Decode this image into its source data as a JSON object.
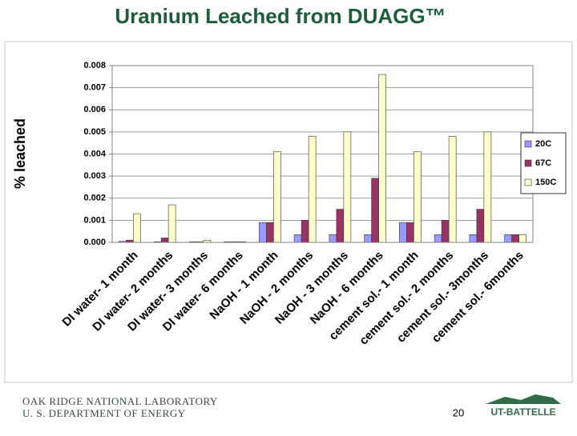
{
  "slide": {
    "title": "Uranium Leached from DUAGG™",
    "footer_line1": "OAK RIDGE NATIONAL LABORATORY",
    "footer_line2": "U. S. DEPARTMENT OF ENERGY",
    "page_number": "20",
    "logo_text": "UT-BATTELLE"
  },
  "chart_data": {
    "type": "bar",
    "y_label": "% leached",
    "categories": [
      "DI water- 1 month",
      "DI water- 2 months",
      "DI water- 3 months",
      "DI water- 6 months",
      "NaOH - 1 month",
      "NaOH - 2 months",
      "NaOH - 3 months",
      "NaOH - 6 months",
      "cement sol.- 1 month",
      "cement sol.- 2 months",
      "cement sol.- 3months",
      "cement sol.- 6months"
    ],
    "series": [
      {
        "name": "20C",
        "color": "#9999ff",
        "values": [
          5e-05,
          3e-05,
          3e-05,
          3e-05,
          0.0009,
          0.00035,
          0.00035,
          0.00035,
          0.0009,
          0.00035,
          0.00035,
          0.00035
        ]
      },
      {
        "name": "67C",
        "color": "#993366",
        "values": [
          0.0001,
          0.0002,
          3e-05,
          3e-05,
          0.0009,
          0.001,
          0.0015,
          0.0029,
          0.0009,
          0.001,
          0.0015,
          0.00035
        ]
      },
      {
        "name": "150C",
        "color": "#ffffcc",
        "values": [
          0.0013,
          0.0017,
          0.0001,
          3e-05,
          0.0041,
          0.0048,
          0.005,
          0.0076,
          0.0041,
          0.0048,
          0.005,
          0.00035
        ]
      }
    ],
    "ylim": [
      0,
      0.008
    ],
    "yticks": [
      {
        "value": 0,
        "label": "0.000"
      },
      0.001,
      0.002,
      0.003,
      0.004,
      0.005,
      0.006,
      0.007,
      0.008
    ],
    "grid": true,
    "legend": "right"
  }
}
